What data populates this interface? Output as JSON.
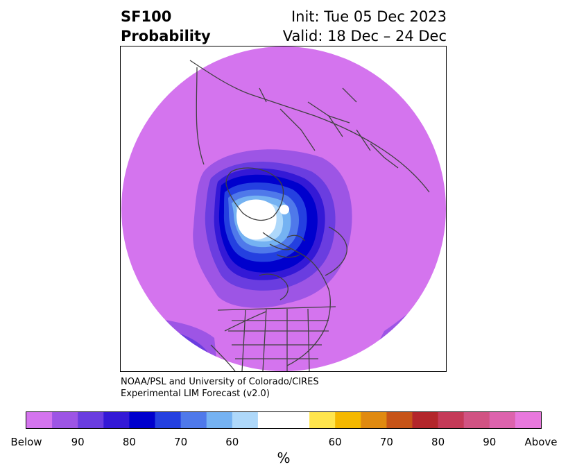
{
  "title": {
    "left_line1": "SF100",
    "left_line2": "Probability",
    "init": "Init: Tue 05 Dec 2023",
    "valid": "Valid: 18 Dec – 24 Dec"
  },
  "credit": {
    "line1": "NOAA/PSL and University of Colorado/CIRES",
    "line2": "Experimental LIM Forecast (v2.0)"
  },
  "colorbar": {
    "unit": "%",
    "colors": [
      "#d474ee",
      "#9d55e5",
      "#6a3de0",
      "#3419d6",
      "#0000cd",
      "#2440e0",
      "#4f79ea",
      "#75b2f2",
      "#aed8fa",
      "#ffffff",
      "#ffe54d",
      "#f5b800",
      "#e08a10",
      "#c75418",
      "#b3262b",
      "#c53a58",
      "#d15383",
      "#dd63ad",
      "#e878dd"
    ],
    "tick_labels": [
      "Below",
      "90",
      "80",
      "70",
      "60",
      "60",
      "70",
      "80",
      "90",
      "Above"
    ]
  },
  "map_colors": {
    "background": "#d474ee",
    "prob_60": "#9d55e5",
    "prob_70": "#6a3de0",
    "prob_80": "#3419d6",
    "prob_90": "#0000cd",
    "prob_95": "#2440e0",
    "prob_97": "#4f79ea",
    "prob_98": "#75b2f2",
    "prob_99": "#aed8fa",
    "neutral": "#ffffff",
    "coast": "#404040"
  }
}
